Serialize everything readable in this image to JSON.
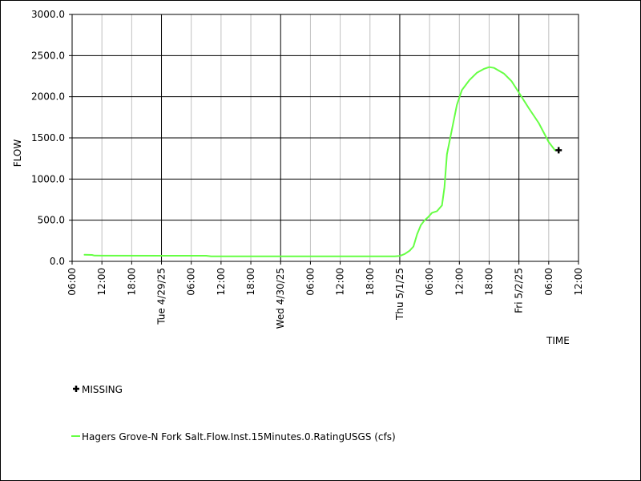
{
  "chart_data": {
    "type": "line",
    "ylabel": "FLOW",
    "xlabel": "TIME",
    "ylim": [
      0,
      3000
    ],
    "yticks": [
      0,
      500,
      1000,
      1500,
      2000,
      2500,
      3000
    ],
    "ytick_labels": [
      "0.0",
      "500.0",
      "1000.0",
      "1500.0",
      "2000.0",
      "2500.0",
      "3000.0"
    ],
    "xlim": [
      "2025-04-28T06:00",
      "2025-05-02T12:00"
    ],
    "xticks": [
      {
        "t": "2025-04-28T06:00",
        "label": "06:00",
        "major": false
      },
      {
        "t": "2025-04-28T12:00",
        "label": "12:00",
        "major": false
      },
      {
        "t": "2025-04-28T18:00",
        "label": "18:00",
        "major": false
      },
      {
        "t": "2025-04-29T00:00",
        "label": "Tue 4/29/25",
        "major": true
      },
      {
        "t": "2025-04-29T06:00",
        "label": "06:00",
        "major": false
      },
      {
        "t": "2025-04-29T12:00",
        "label": "12:00",
        "major": false
      },
      {
        "t": "2025-04-29T18:00",
        "label": "18:00",
        "major": false
      },
      {
        "t": "2025-04-30T00:00",
        "label": "Wed 4/30/25",
        "major": true
      },
      {
        "t": "2025-04-30T06:00",
        "label": "06:00",
        "major": false
      },
      {
        "t": "2025-04-30T12:00",
        "label": "12:00",
        "major": false
      },
      {
        "t": "2025-04-30T18:00",
        "label": "18:00",
        "major": false
      },
      {
        "t": "2025-05-01T00:00",
        "label": "Thu 5/1/25",
        "major": true
      },
      {
        "t": "2025-05-01T06:00",
        "label": "06:00",
        "major": false
      },
      {
        "t": "2025-05-01T12:00",
        "label": "12:00",
        "major": false
      },
      {
        "t": "2025-05-01T18:00",
        "label": "18:00",
        "major": false
      },
      {
        "t": "2025-05-02T00:00",
        "label": "Fri 5/2/25",
        "major": true
      },
      {
        "t": "2025-05-02T06:00",
        "label": "06:00",
        "major": false
      },
      {
        "t": "2025-05-02T12:00",
        "label": "12:00",
        "major": false
      }
    ],
    "grid": true,
    "legend_placement": "bottom-left",
    "series": [
      {
        "name": "Hagers Grove-N Fork Salt.Flow.Inst.15Minutes.0.RatingUSGS (cfs)",
        "color": "#66ff44",
        "points": [
          {
            "x": "2025-04-28T08:30",
            "y": 80
          },
          {
            "x": "2025-04-28T10:00",
            "y": 78
          },
          {
            "x": "2025-04-28T10:30",
            "y": 70
          },
          {
            "x": "2025-04-29T00:00",
            "y": 68
          },
          {
            "x": "2025-04-29T09:00",
            "y": 68
          },
          {
            "x": "2025-04-29T10:00",
            "y": 60
          },
          {
            "x": "2025-04-30T00:00",
            "y": 60
          },
          {
            "x": "2025-04-30T12:00",
            "y": 60
          },
          {
            "x": "2025-04-30T23:00",
            "y": 60
          },
          {
            "x": "2025-05-01T00:00",
            "y": 65
          },
          {
            "x": "2025-05-01T01:00",
            "y": 90
          },
          {
            "x": "2025-05-01T02:00",
            "y": 130
          },
          {
            "x": "2025-05-01T02:45",
            "y": 180
          },
          {
            "x": "2025-05-01T03:30",
            "y": 330
          },
          {
            "x": "2025-05-01T04:15",
            "y": 440
          },
          {
            "x": "2025-05-01T05:00",
            "y": 500
          },
          {
            "x": "2025-05-01T05:45",
            "y": 540
          },
          {
            "x": "2025-05-01T06:30",
            "y": 590
          },
          {
            "x": "2025-05-01T07:30",
            "y": 610
          },
          {
            "x": "2025-05-01T08:30",
            "y": 680
          },
          {
            "x": "2025-05-01T09:00",
            "y": 900
          },
          {
            "x": "2025-05-01T09:30",
            "y": 1300
          },
          {
            "x": "2025-05-01T10:30",
            "y": 1600
          },
          {
            "x": "2025-05-01T11:30",
            "y": 1900
          },
          {
            "x": "2025-05-01T12:30",
            "y": 2080
          },
          {
            "x": "2025-05-01T14:00",
            "y": 2200
          },
          {
            "x": "2025-05-01T15:30",
            "y": 2290
          },
          {
            "x": "2025-05-01T17:00",
            "y": 2340
          },
          {
            "x": "2025-05-01T18:00",
            "y": 2360
          },
          {
            "x": "2025-05-01T19:00",
            "y": 2350
          },
          {
            "x": "2025-05-01T21:00",
            "y": 2280
          },
          {
            "x": "2025-05-01T22:30",
            "y": 2190
          },
          {
            "x": "2025-05-02T00:00",
            "y": 2050
          },
          {
            "x": "2025-05-02T02:00",
            "y": 1860
          },
          {
            "x": "2025-05-02T04:00",
            "y": 1680
          },
          {
            "x": "2025-05-02T06:00",
            "y": 1450
          },
          {
            "x": "2025-05-02T07:15",
            "y": 1350
          }
        ]
      }
    ],
    "missing_markers": [
      {
        "x": "2025-05-02T08:00",
        "y": 1350
      }
    ],
    "legend": [
      {
        "label": "MISSING",
        "marker": "plus",
        "color": "#000000"
      },
      {
        "label": "Hagers Grove-N Fork Salt.Flow.Inst.15Minutes.0.RatingUSGS (cfs)",
        "marker": "line",
        "color": "#66ff44"
      }
    ]
  }
}
